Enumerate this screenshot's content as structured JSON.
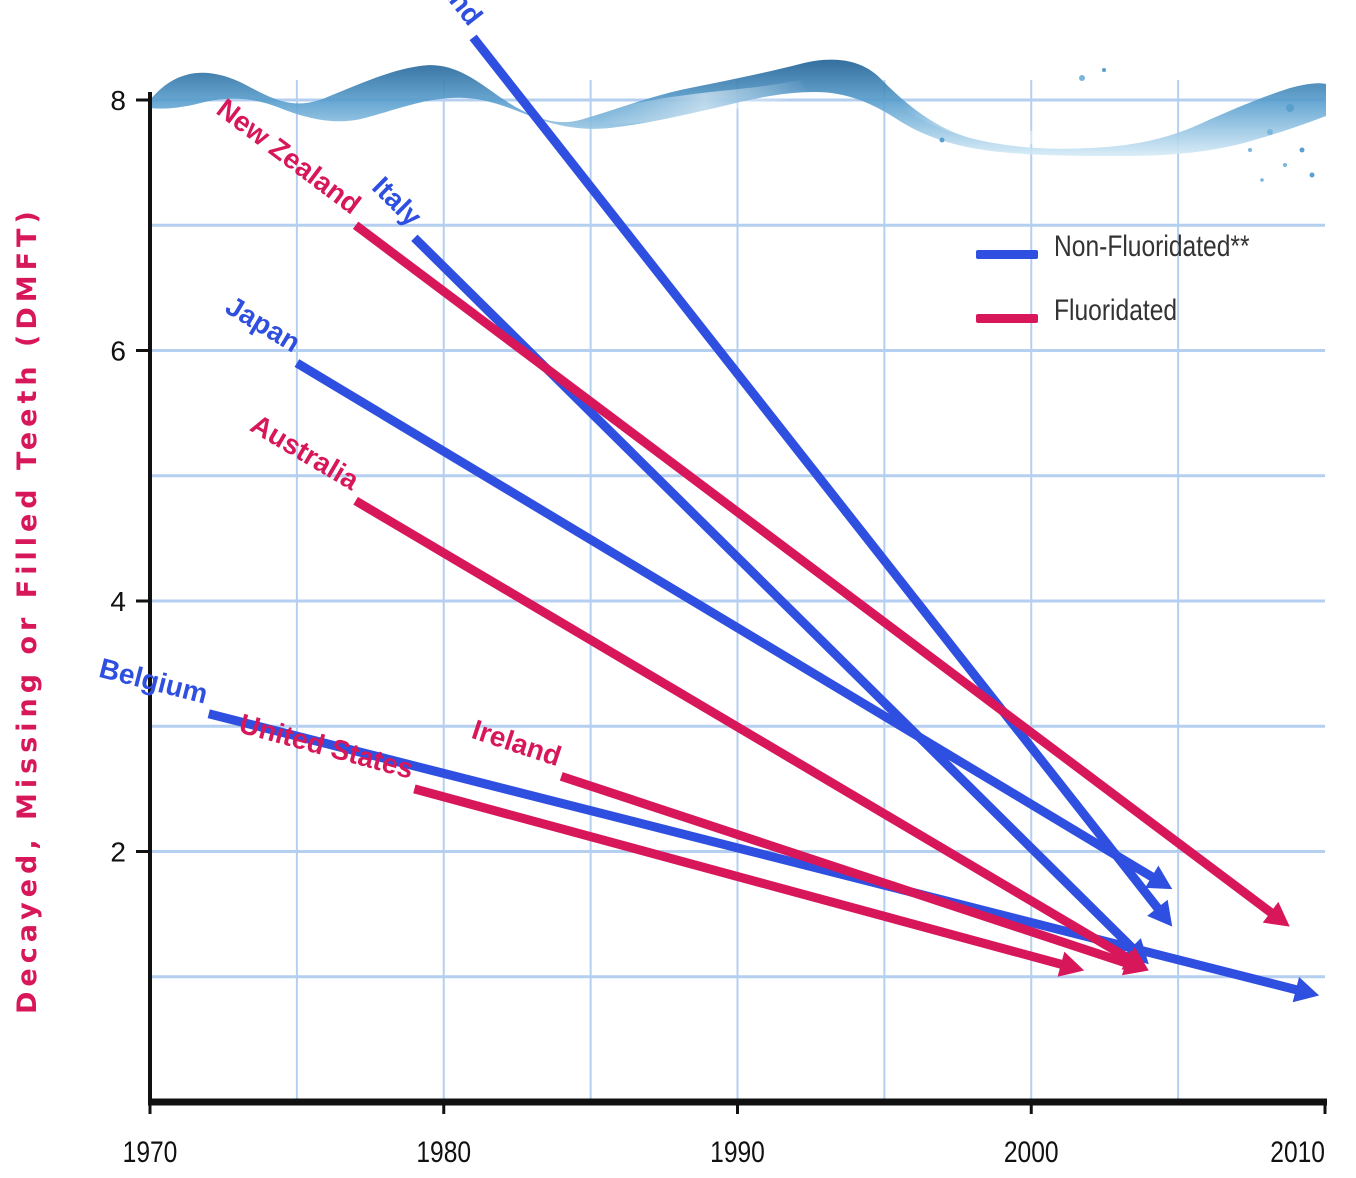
{
  "chart_data": {
    "type": "line",
    "title": "",
    "xlabel": "",
    "ylabel": "Decayed, Missing or Filled Teeth (DMFT)",
    "xlim": [
      1970,
      2010
    ],
    "ylim": [
      0,
      8
    ],
    "x_ticks": [
      "1970",
      "1980",
      "1990",
      "2000",
      "2010"
    ],
    "y_ticks": [
      "2",
      "4",
      "6",
      "8"
    ],
    "grid": true,
    "legend": {
      "placement": "top-right",
      "entries": [
        {
          "label": "Non-Fluoridated**",
          "color": "#2f4fe0"
        },
        {
          "label": "Fluoridated",
          "color": "#d8175a"
        }
      ]
    },
    "colors": {
      "non_fluoridated": "#2f4fe0",
      "fluoridated": "#d8175a",
      "axis": "#111111",
      "grid": "#b5cff0"
    },
    "series": [
      {
        "name": "Iceland",
        "group": "non_fluoridated",
        "x": [
          1981,
          2004.8
        ],
        "y": [
          8.5,
          1.4
        ]
      },
      {
        "name": "Italy",
        "group": "non_fluoridated",
        "x": [
          1979,
          2004
        ],
        "y": [
          6.9,
          1.1
        ]
      },
      {
        "name": "Japan",
        "group": "non_fluoridated",
        "x": [
          1975,
          2004.8
        ],
        "y": [
          5.9,
          1.7
        ]
      },
      {
        "name": "Belgium",
        "group": "non_fluoridated",
        "x": [
          1972,
          2009.8
        ],
        "y": [
          3.1,
          0.85
        ]
      },
      {
        "name": "New Zealand",
        "group": "fluoridated",
        "x": [
          1977,
          2008.8
        ],
        "y": [
          7.0,
          1.4
        ]
      },
      {
        "name": "Australia",
        "group": "fluoridated",
        "x": [
          1977,
          2004
        ],
        "y": [
          4.8,
          1.05
        ]
      },
      {
        "name": "Ireland",
        "group": "fluoridated",
        "x": [
          1984,
          2004
        ],
        "y": [
          2.6,
          1.05
        ]
      },
      {
        "name": "United States",
        "group": "fluoridated",
        "x": [
          1979,
          2001.8
        ],
        "y": [
          2.5,
          1.05
        ]
      }
    ]
  }
}
